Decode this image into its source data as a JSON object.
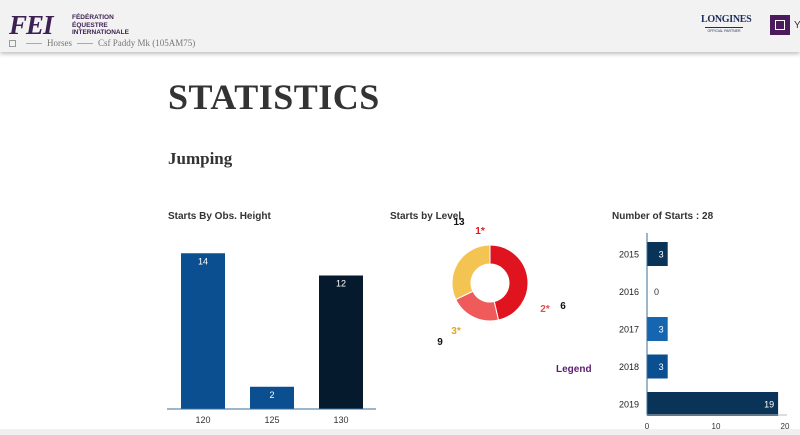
{
  "header": {
    "logo_mark": "FEI",
    "logo_lines": [
      "FÉDÉRATION",
      "ÉQUESTRE",
      "INTERNATIONALE"
    ],
    "sponsor_name": "LONGINES",
    "sponsor_tag": "OFFICIAL PARTNER",
    "user_initial": "Y"
  },
  "breadcrumb": {
    "items": [
      "Horses",
      "Csf Paddy Mk (105AM75)"
    ]
  },
  "page": {
    "title": "STATISTICS",
    "section": "Jumping"
  },
  "colors": {
    "fei_purple": "#3d2152",
    "legend_purple": "#5a1f6e",
    "bar_blue": "#0b4f91",
    "bar_dark": "#061a2e",
    "bar_mid_blue": "#1565b0",
    "bar_navy": "#0a3358",
    "donut_red": "#e0141f",
    "donut_coral": "#ef5a5a",
    "donut_yellow": "#f4c452"
  },
  "chart_data": [
    {
      "type": "bar",
      "title": "Starts By Obs. Height",
      "categories": [
        "120",
        "125",
        "130"
      ],
      "values": [
        14,
        2,
        12
      ],
      "ylim": [
        0,
        16
      ],
      "grid": false,
      "colors": [
        "#0b4f91",
        "#0b4f91",
        "#061a2e"
      ]
    },
    {
      "type": "pie",
      "title": "Starts by Level",
      "labels": [
        "1*",
        "2*",
        "3*"
      ],
      "values": [
        13,
        6,
        9
      ],
      "label_colors": [
        "#e0141f",
        "#e05050",
        "#e0a528"
      ],
      "colors": [
        "#e0141f",
        "#ef5a5a",
        "#f4c452"
      ],
      "legend_label": "Legend"
    },
    {
      "type": "bar",
      "orientation": "horizontal",
      "title": "Number of Starts : 28",
      "categories": [
        "2015",
        "2016",
        "2017",
        "2018",
        "2019"
      ],
      "values": [
        3,
        0,
        3,
        3,
        19
      ],
      "xlim": [
        0,
        20
      ],
      "xticks": [
        "0",
        "10",
        "20"
      ],
      "grid": false,
      "colors": [
        "#0a3358",
        "#0a3358",
        "#1565b0",
        "#0b4f91",
        "#0a3358"
      ]
    }
  ]
}
